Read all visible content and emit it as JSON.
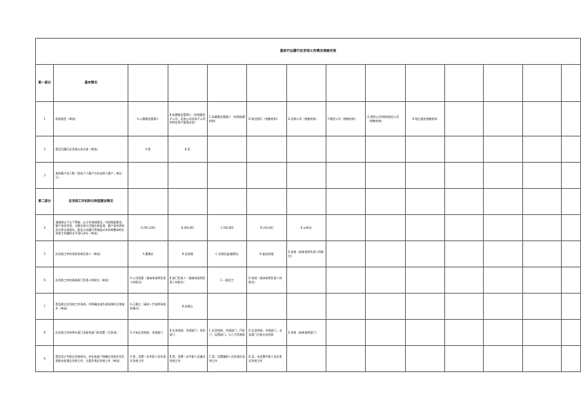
{
  "title": "基金行业履行反洗钱义务情况调查问卷",
  "rows": [
    {
      "type": "section",
      "num": "第一部分",
      "question": "基本情况",
      "options": []
    },
    {
      "type": "q",
      "num": "1",
      "question": "机构类型（单选）",
      "options": [
        "A.公募基金管理人",
        "B.私募基金管理人（仅指基金子公司、证券公司及其子公司的特定资产管理业务）",
        "C.私募基金管理人（仅指私募机构）",
        "D.商业银行（销售机构）",
        "E.证券公司（销售机构）",
        "F.期货公司（销售机构）",
        "G.保险公司/保险经纪公司（销售机构）",
        "H.独立基金销售机构"
      ]
    },
    {
      "type": "q",
      "num": "2",
      "question": "是否为履行反洗钱义务主体（单选）",
      "options": [
        "A.是",
        "B.否"
      ]
    },
    {
      "type": "q",
      "num": "3",
      "question": "现有客户总人数（包括个人客户与非自然人客户，单位：万）",
      "options": []
    },
    {
      "type": "section",
      "num": "第二部分",
      "question": "反洗钱工作机制与制度建设情况",
      "options": []
    },
    {
      "type": "q",
      "num": "4",
      "question": "请按照以下五个等级，从工作机制建设、内控制度建设、客户身份识别、大额交易与可疑交易监测、客户身份资料及交易记录保存、配合义务履行等角度对本机构整体的反洗钱工作履职水平进行评价（单选）",
      "options": [
        "A.(90,100]",
        "B.(80,90]",
        "C.(60,80]",
        "D.(40,60]",
        "E.≤40分"
      ]
    },
    {
      "type": "q",
      "num": "5",
      "question": "反洗钱工作的领导机构负责人（单选）",
      "options": [
        "A.董事长",
        "B.总经理",
        "C.合规总监/督察长",
        "D.副总经理",
        "E.其他（具体说明负责人的职位）"
      ]
    },
    {
      "type": "q",
      "num": "6",
      "question": "反洗钱工作的具体部门负责人的职位（单选）",
      "options": [
        "A.公司高管（请具体说明负责人的职位）",
        "B.部门负责人（请具体说明负责人的职位）",
        "C.一般员工",
        "D.其他（具体说明负责人的职位）"
      ]
    },
    {
      "type": "q",
      "num": "7",
      "question": "是否建立反洗钱工作系统，并明确由谁负责系统的日常维护（单选）",
      "options": [
        "A.已建立（请进一步说明系统的情况）",
        "B.未建立"
      ]
    },
    {
      "type": "q",
      "num": "8",
      "question": "反洗钱工作的牵头部门及配合部门的设置（可多选）",
      "options": [
        "A.只有反洗钱岗，合规部门",
        "B.反洗钱岗、合规部门、风险部门",
        "C.反洗钱岗、合规部门、IT部门、运营部门，与人力资源部",
        "D.反洗钱岗、合规部门、业务部门与各分支机构",
        "E.其他（具体说明部门）"
      ]
    },
    {
      "type": "q",
      "num": "9",
      "question": "是否设立专职反洗钱岗位，并在各部门明确反洗钱专员负责配合处理反洗钱工作，主要负责反洗钱工作（单选）",
      "options": [
        "A.是，设置一名专职人员负责反洗钱工作",
        "B.是，设置一名专职人员兼任其他工作",
        "C.是，设置兼职人员负责反洗钱工作",
        "D.否，未设置专职人员负责反洗钱工作"
      ]
    }
  ]
}
